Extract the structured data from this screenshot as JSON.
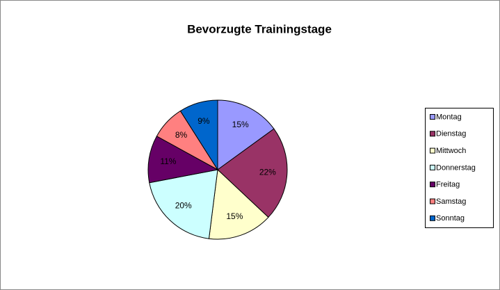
{
  "chart_data": {
    "type": "pie",
    "title": "Bevorzugte Trainingstage",
    "categories": [
      "Montag",
      "Dienstag",
      "Mittwoch",
      "Donnerstag",
      "Freitag",
      "Samstag",
      "Sonntag"
    ],
    "values": [
      15,
      22,
      15,
      20,
      11,
      8,
      9
    ],
    "value_labels": [
      "15%",
      "22%",
      "15%",
      "20%",
      "11%",
      "8%",
      "9%"
    ],
    "colors": [
      "#9999ff",
      "#993366",
      "#ffffcc",
      "#ccffff",
      "#660066",
      "#ff8080",
      "#0066cc"
    ],
    "legend": "right"
  }
}
